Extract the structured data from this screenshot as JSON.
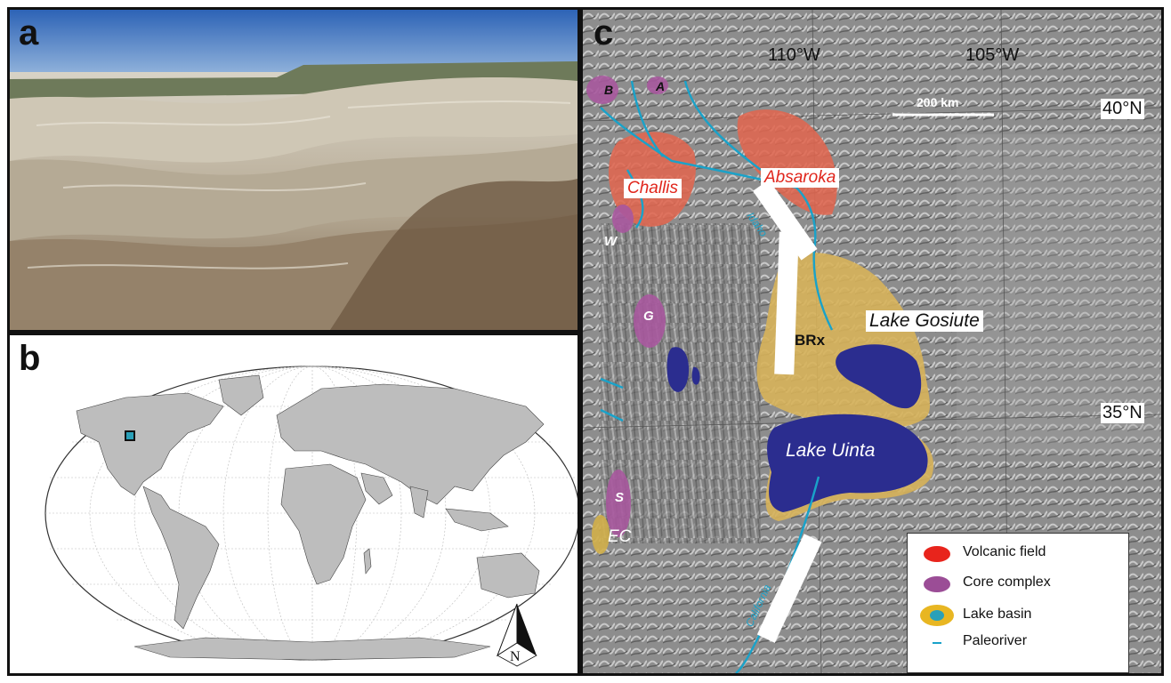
{
  "panels": {
    "a": {
      "letter": "a"
    },
    "b": {
      "letter": "b",
      "north_label": "N"
    },
    "c": {
      "letter": "c",
      "longitudes": [
        "110°W",
        "105°W"
      ],
      "latitudes": [
        "40°N",
        "35°N"
      ],
      "scale_bar": "200 km",
      "volcanic_fields": [
        "Challis",
        "Absaroka"
      ],
      "lakes": [
        "Lake Gosiute",
        "Lake Uinta"
      ],
      "site": "BR",
      "rivers": [
        "Idaho",
        "California"
      ],
      "core_complexes": [
        "B",
        "A",
        "W",
        "G",
        "S",
        "EC"
      ],
      "legend": [
        {
          "label": "Volcanic field",
          "color": "#e8241c"
        },
        {
          "label": "Core complex",
          "color": "#9b4d96"
        },
        {
          "label": "Lake basin",
          "color": "#e8b622",
          "inner": "#2aa0b8"
        },
        {
          "label": "Paleoriver",
          "color": "#19a2c9"
        }
      ]
    }
  }
}
